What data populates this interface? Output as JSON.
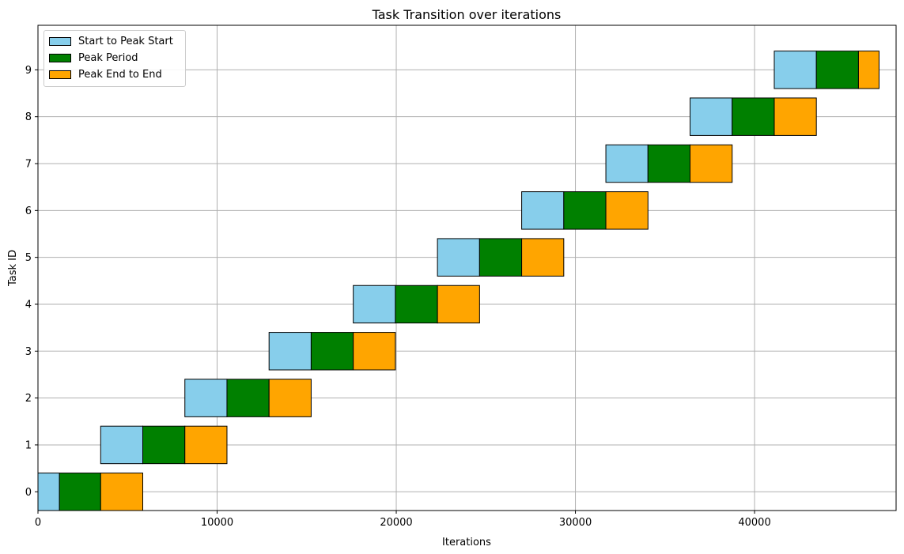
{
  "chart_data": {
    "type": "bar",
    "title": "Task Transition over iterations",
    "xlabel": "Iterations",
    "ylabel": "Task ID",
    "xlim": [
      0,
      47900
    ],
    "ylim": [
      -0.4,
      9.95
    ],
    "x_ticks": [
      0,
      10000,
      20000,
      30000,
      40000
    ],
    "x_tick_labels": [
      "0",
      "10000",
      "20000",
      "30000",
      "40000"
    ],
    "y_ticks": [
      0,
      1,
      2,
      3,
      4,
      5,
      6,
      7,
      8,
      9
    ],
    "y_tick_labels": [
      "0",
      "1",
      "2",
      "3",
      "4",
      "5",
      "6",
      "7",
      "8",
      "9"
    ],
    "grid": true,
    "legend_position": "top-left",
    "series": [
      {
        "name": "Start to Peak Start",
        "color": "#87CEEB",
        "tasks": [
          0,
          1,
          2,
          3,
          4,
          5,
          6,
          7,
          8,
          9
        ],
        "start": [
          0,
          3500,
          8200,
          12900,
          17600,
          22300,
          27000,
          31700,
          36400,
          41100
        ],
        "duration": [
          1200,
          2350,
          2350,
          2350,
          2350,
          2350,
          2350,
          2350,
          2350,
          2350
        ]
      },
      {
        "name": "Peak Period",
        "color": "#008000",
        "tasks": [
          0,
          1,
          2,
          3,
          4,
          5,
          6,
          7,
          8,
          9
        ],
        "start": [
          1200,
          5850,
          10550,
          15250,
          19950,
          24650,
          29350,
          34050,
          38750,
          43450
        ],
        "duration": [
          2300,
          2350,
          2350,
          2350,
          2350,
          2350,
          2350,
          2350,
          2350,
          2350
        ]
      },
      {
        "name": "Peak End to End",
        "color": "#FFA500",
        "tasks": [
          0,
          1,
          2,
          3,
          4,
          5,
          6,
          7,
          8,
          9
        ],
        "start": [
          3500,
          8200,
          12900,
          17600,
          22300,
          27000,
          31700,
          36400,
          41100,
          45800
        ],
        "duration": [
          2350,
          2350,
          2350,
          2350,
          2350,
          2350,
          2350,
          2350,
          2350,
          1150
        ]
      }
    ]
  }
}
